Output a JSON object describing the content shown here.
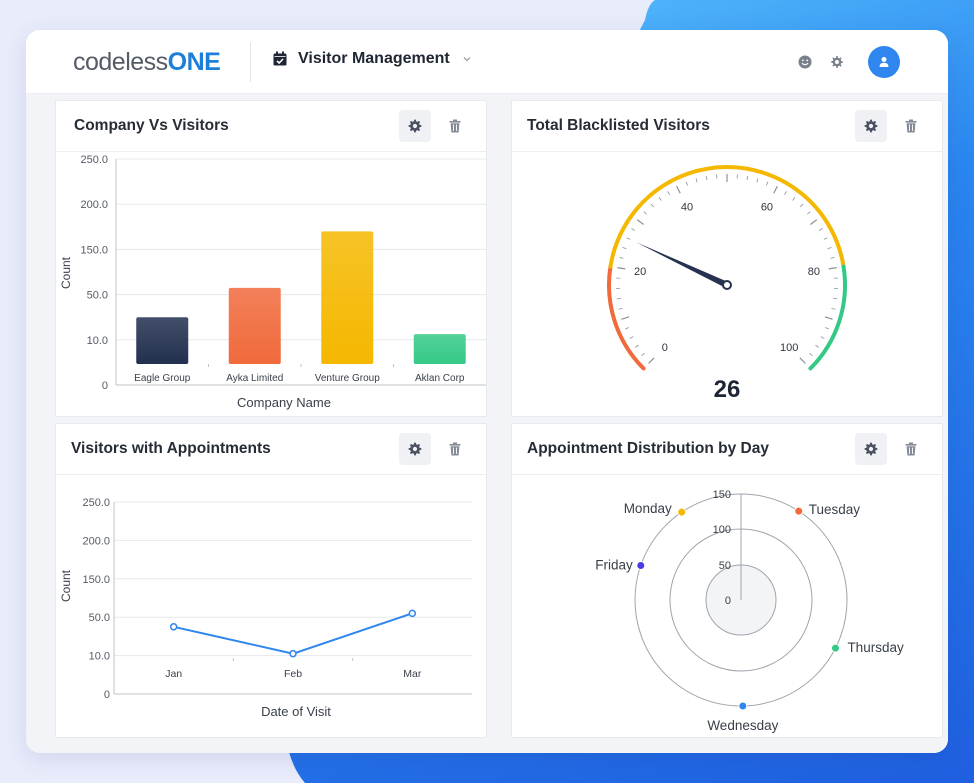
{
  "header": {
    "logo_part1": "codeless",
    "logo_part2": "ONE",
    "app_title": "Visitor Management",
    "icons": [
      "calendar-check-icon",
      "chevron-down-icon",
      "smiley-icon",
      "gear-icon",
      "user-icon"
    ]
  },
  "colors": {
    "brand": "#1d7fd8",
    "navy": "#22304f",
    "orange": "#f06a3c",
    "yellow": "#f5b800",
    "green": "#35c987",
    "line": "#2f86ee"
  },
  "cards": {
    "company": {
      "title": "Company Vs Visitors"
    },
    "blacklist": {
      "title": "Total Blacklisted Visitors"
    },
    "appointments": {
      "title": "Visitors with Appointments"
    },
    "distribution": {
      "title": "Appointment Distribution by Day"
    }
  },
  "chart_data": [
    {
      "type": "bar",
      "title": "Company Vs Visitors",
      "xlabel": "Company Name",
      "ylabel": "Count",
      "y_tick_labels": [
        "0",
        "10.0",
        "50.0",
        "150.0",
        "200.0",
        "250.0"
      ],
      "categories": [
        "Eagle Group",
        "Ayka Limited",
        "Venture Group",
        "Aklan Corp"
      ],
      "values": [
        30,
        65,
        170,
        15
      ],
      "bar_colors": [
        "#22304f",
        "#f06a3c",
        "#f5b800",
        "#35c987"
      ],
      "grid": true
    },
    {
      "type": "gauge",
      "title": "Total Blacklisted Visitors",
      "value": 26,
      "value_label": "26",
      "range": [
        0,
        100
      ],
      "tick_labels": [
        "0",
        "20",
        "40",
        "60",
        "80",
        "100"
      ],
      "bands": [
        {
          "from": 0,
          "to": 20,
          "color": "#f06a3c"
        },
        {
          "from": 20,
          "to": 80,
          "color": "#f5b800"
        },
        {
          "from": 80,
          "to": 100,
          "color": "#35c987"
        }
      ]
    },
    {
      "type": "line",
      "title": "Visitors with Appointments",
      "xlabel": "Date of Visit",
      "ylabel": "Count",
      "y_tick_labels": [
        "0",
        "10.0",
        "50.0",
        "150.0",
        "200.0",
        "250.0"
      ],
      "categories": [
        "Jan",
        "Feb",
        "Mar"
      ],
      "values": [
        40,
        12,
        60
      ],
      "grid": true
    },
    {
      "type": "polar-scatter",
      "title": "Appointment Distribution by Day",
      "r_tick_labels": [
        "0",
        "50",
        "100",
        "150"
      ],
      "rmax": 150,
      "points": [
        {
          "label": "Tuesday",
          "r": 150,
          "color": "#f06a3c"
        },
        {
          "label": "Thursday",
          "r": 150,
          "color": "#35c987"
        },
        {
          "label": "Wednesday",
          "r": 150,
          "color": "#2f86ee"
        },
        {
          "label": "Friday",
          "r": 150,
          "color": "#4a3ce0"
        },
        {
          "label": "Monday",
          "r": 150,
          "color": "#f5b800"
        }
      ]
    }
  ]
}
